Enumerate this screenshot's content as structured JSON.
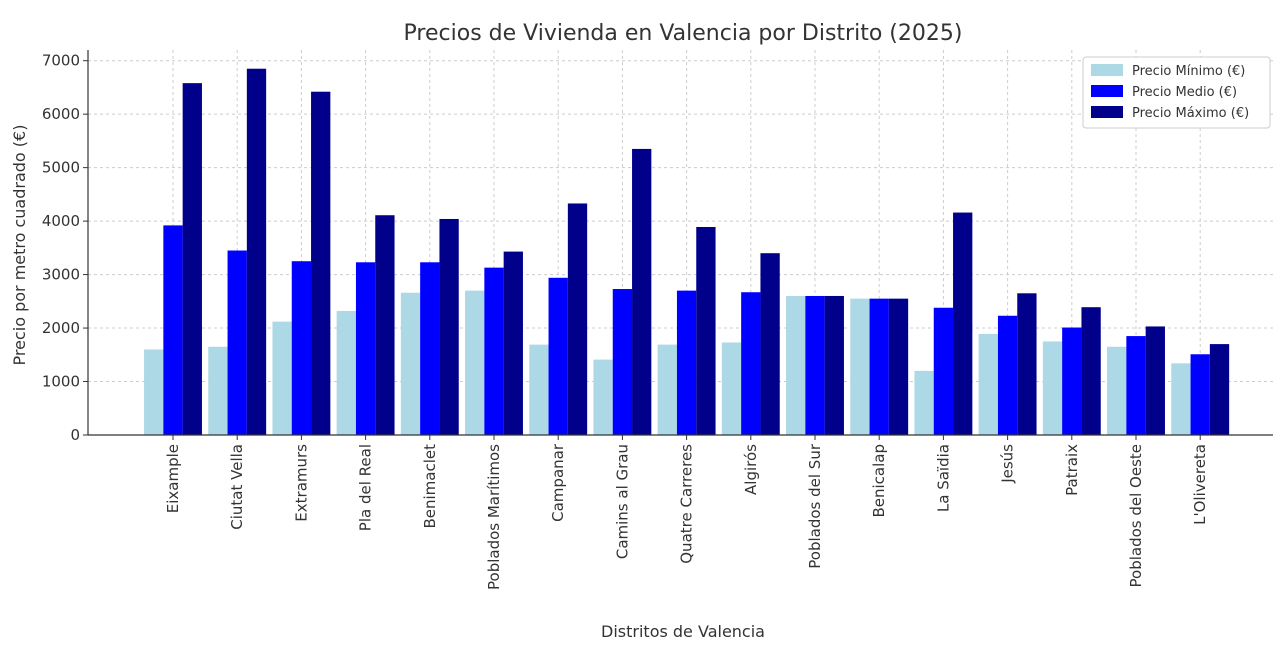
{
  "chart_data": {
    "type": "bar",
    "title": "Precios de Vivienda en Valencia por Distrito (2025)",
    "xlabel": "Distritos de Valencia",
    "ylabel": "Precio por metro cuadrado (€)",
    "ylim": [
      0,
      7200
    ],
    "yticks": [
      0,
      1000,
      2000,
      3000,
      4000,
      5000,
      6000,
      7000
    ],
    "grid": true,
    "legend_position": "top-right",
    "categories": [
      "Eixample",
      "Ciutat Vella",
      "Extramurs",
      "Pla del Real",
      "Benimaclet",
      "Poblados Marítimos",
      "Campanar",
      "Camins al Grau",
      "Quatre Carreres",
      "Algirós",
      "Poblados del Sur",
      "Benicalap",
      "La Saïdia",
      "Jesús",
      "Patraix",
      "Poblados del Oeste",
      "L'Olivereta"
    ],
    "series": [
      {
        "name": "Precio Mínimo (€)",
        "color": "#add8e6",
        "values": [
          1600,
          1650,
          2120,
          2320,
          2660,
          2700,
          1690,
          1410,
          1690,
          1730,
          2600,
          2550,
          1200,
          1890,
          1750,
          1650,
          1340
        ]
      },
      {
        "name": "Precio Medio (€)",
        "color": "#0000ff",
        "values": [
          3920,
          3450,
          3250,
          3230,
          3230,
          3130,
          2940,
          2730,
          2700,
          2670,
          2600,
          2550,
          2380,
          2230,
          2010,
          1850,
          1510
        ]
      },
      {
        "name": "Precio Máximo (€)",
        "color": "#00008b",
        "values": [
          6580,
          6850,
          6420,
          4110,
          4040,
          3430,
          4330,
          5350,
          3890,
          3400,
          2600,
          2550,
          4160,
          2650,
          2390,
          2030,
          1700
        ]
      }
    ]
  }
}
